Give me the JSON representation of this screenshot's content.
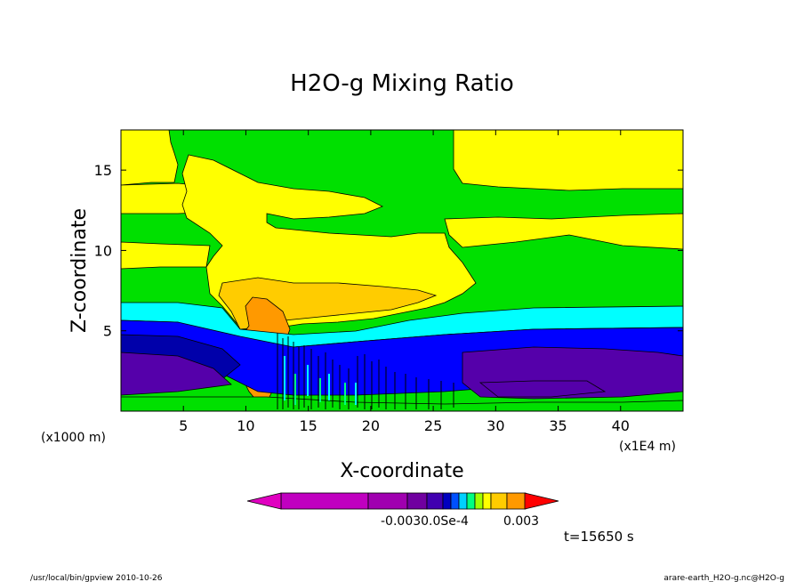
{
  "chart_data": {
    "type": "heatmap",
    "title": "H2O-g Mixing Ratio",
    "xlabel": "X-coordinate",
    "ylabel": "Z-coordinate",
    "x_unit": "(x1000 m)",
    "x_unit_right": "(x1E4 m)",
    "xlim": [
      0,
      45
    ],
    "ylim": [
      0,
      17.5
    ],
    "x_ticks": [
      5,
      10,
      15,
      20,
      25,
      30,
      35,
      40
    ],
    "y_ticks": [
      5,
      10,
      15
    ],
    "colorbar": {
      "labels": [
        "-0.003",
        "0.05e-4",
        "0.003"
      ],
      "overlapping_label_text": "-0.0030.0Se-4",
      "colors": [
        "#c000c0",
        "#a000b0",
        "#7000a0",
        "#4000b0",
        "#0000c0",
        "#0050ff",
        "#00d0ff",
        "#00ff80",
        "#a0ff00",
        "#ffff00",
        "#ffcc00",
        "#ff9900",
        "#ff6600",
        "#ff0000"
      ]
    },
    "time_label": "t=15650 s",
    "regions": [
      {
        "level": "green",
        "color": "#00e000"
      },
      {
        "level": "yellow",
        "color": "#ffff00"
      },
      {
        "level": "light-orange",
        "color": "#ffcc00"
      },
      {
        "level": "orange",
        "color": "#ff9900"
      },
      {
        "level": "cyan",
        "color": "#00ffff"
      },
      {
        "level": "blue",
        "color": "#0000ff"
      },
      {
        "level": "dark-blue",
        "color": "#0000aa"
      },
      {
        "level": "purple",
        "color": "#5500aa"
      }
    ]
  },
  "footer": {
    "left": "/usr/local/bin/gpview  2010-10-26",
    "right": "arare-earth_H2O-g.nc@H2O-g"
  }
}
